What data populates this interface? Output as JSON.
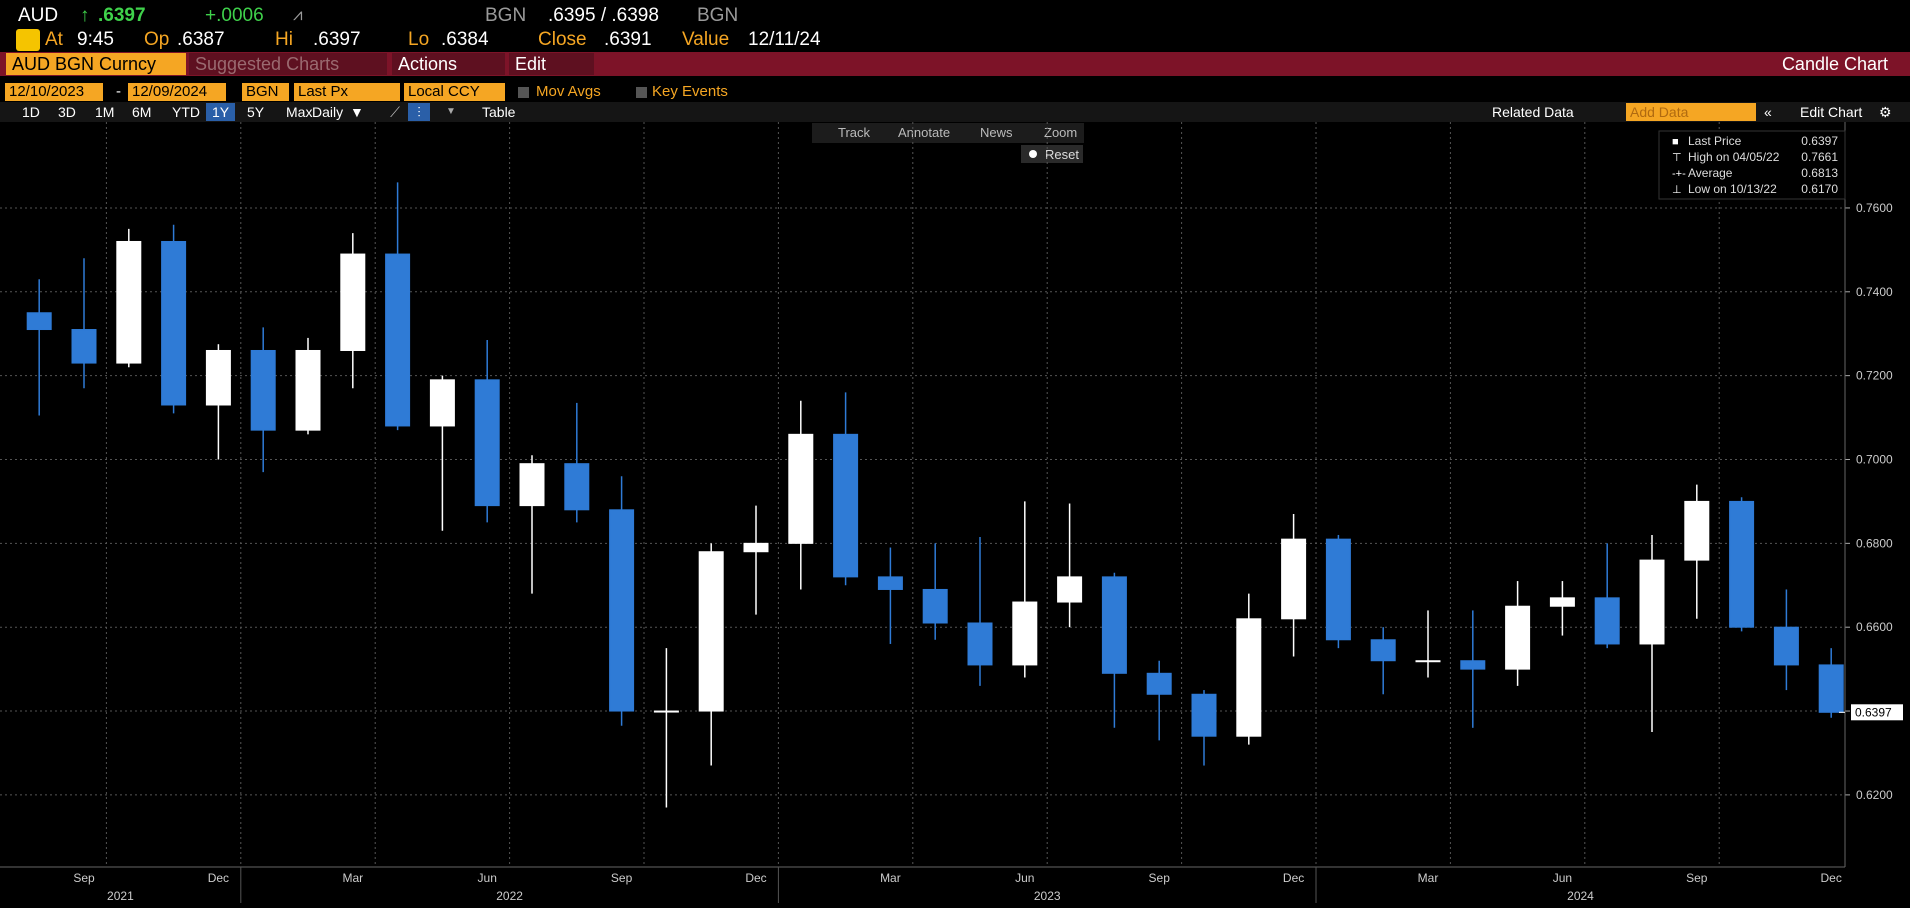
{
  "header": {
    "ticker": "AUD",
    "last": ".6397",
    "change": "+.0006",
    "source": "BGN",
    "bid_ask": ".6395 / .6398",
    "source2": "BGN",
    "time_label": "At",
    "time": "9:45",
    "open_label": "Op",
    "open": ".6387",
    "high_label": "Hi",
    "high": ".6397",
    "low_label": "Lo",
    "low": ".6384",
    "close_label": "Close",
    "close": ".6391",
    "value_label": "Value",
    "value_date": "12/11/24"
  },
  "toolbar": {
    "security": "AUD BGN Curncy",
    "suggested": "Suggested Charts",
    "actions": "Actions",
    "edit": "Edit",
    "chart_name": "Candle Chart"
  },
  "controls": {
    "start_date": "12/10/2023",
    "end_date": "12/09/2024",
    "source": "BGN",
    "field": "Last Px",
    "currency": "Local CCY",
    "mov_avgs": "Mov Avgs",
    "key_events": "Key Events",
    "periods": [
      "1D",
      "3D",
      "1M",
      "6M",
      "YTD",
      "1Y",
      "5Y",
      "Max"
    ],
    "frequency": "Daily",
    "table": "Table",
    "related": "Related Data",
    "add_data": "Add Data",
    "edit_chart": "Edit Chart",
    "tools": [
      "Track",
      "Annotate",
      "News",
      "Zoom"
    ],
    "reset": "Reset"
  },
  "legend": [
    {
      "label": "Last Price",
      "value": "0.6397"
    },
    {
      "label": "High on 04/05/22",
      "value": "0.7661"
    },
    {
      "label": "Average",
      "value": "0.6813"
    },
    {
      "label": "Low on 10/13/22",
      "value": "0.6170"
    }
  ],
  "chart_data": {
    "type": "candlestick",
    "categories": [
      "2021-08",
      "2021-09",
      "2021-10",
      "2021-11",
      "2021-12",
      "2022-01",
      "2022-02",
      "2022-03",
      "2022-04",
      "2022-05",
      "2022-06",
      "2022-07",
      "2022-08",
      "2022-09",
      "2022-10",
      "2022-11",
      "2022-12",
      "2023-01",
      "2023-02",
      "2023-03",
      "2023-04",
      "2023-05",
      "2023-06",
      "2023-07",
      "2023-08",
      "2023-09",
      "2023-10",
      "2023-11",
      "2023-12",
      "2024-01",
      "2024-02",
      "2024-03",
      "2024-04",
      "2024-05",
      "2024-06",
      "2024-07",
      "2024-08",
      "2024-09",
      "2024-10",
      "2024-11",
      "2024-12"
    ],
    "open": [
      0.735,
      0.731,
      0.723,
      0.752,
      0.713,
      0.726,
      0.707,
      0.726,
      0.749,
      0.708,
      0.719,
      0.689,
      0.699,
      0.688,
      0.64,
      0.64,
      0.678,
      0.68,
      0.706,
      0.672,
      0.669,
      0.661,
      0.651,
      0.666,
      0.672,
      0.649,
      0.644,
      0.634,
      0.662,
      0.681,
      0.657,
      0.652,
      0.652,
      0.65,
      0.665,
      0.667,
      0.656,
      0.676,
      0.69,
      0.66,
      0.651
    ],
    "high": [
      0.743,
      0.748,
      0.755,
      0.756,
      0.7275,
      0.7315,
      0.729,
      0.754,
      0.7661,
      0.72,
      0.7285,
      0.701,
      0.7135,
      0.696,
      0.655,
      0.68,
      0.689,
      0.714,
      0.716,
      0.679,
      0.68,
      0.6815,
      0.69,
      0.6895,
      0.673,
      0.652,
      0.645,
      0.668,
      0.687,
      0.682,
      0.66,
      0.664,
      0.664,
      0.671,
      0.671,
      0.68,
      0.682,
      0.694,
      0.691,
      0.669,
      0.655
    ],
    "low": [
      0.7105,
      0.717,
      0.722,
      0.711,
      0.7,
      0.697,
      0.706,
      0.717,
      0.707,
      0.683,
      0.685,
      0.668,
      0.685,
      0.6365,
      0.617,
      0.627,
      0.663,
      0.669,
      0.67,
      0.656,
      0.657,
      0.646,
      0.648,
      0.66,
      0.636,
      0.633,
      0.627,
      0.632,
      0.653,
      0.655,
      0.644,
      0.648,
      0.636,
      0.646,
      0.658,
      0.655,
      0.635,
      0.662,
      0.659,
      0.645,
      0.6384
    ],
    "close": [
      0.731,
      0.723,
      0.752,
      0.713,
      0.726,
      0.707,
      0.726,
      0.749,
      0.708,
      0.719,
      0.689,
      0.699,
      0.688,
      0.64,
      0.64,
      0.678,
      0.68,
      0.706,
      0.672,
      0.669,
      0.661,
      0.651,
      0.666,
      0.672,
      0.649,
      0.644,
      0.634,
      0.662,
      0.681,
      0.657,
      0.652,
      0.652,
      0.65,
      0.665,
      0.667,
      0.656,
      0.676,
      0.69,
      0.66,
      0.651,
      0.6397
    ],
    "up_color": "#ffffff",
    "down_color": "#2f7bd6",
    "ylim": [
      0.6028,
      0.7805
    ],
    "yticks": [
      {
        "value": 0.62,
        "label": "0.6200"
      },
      {
        "value": 0.64,
        "label": "0.6400"
      },
      {
        "value": 0.66,
        "label": "0.6600"
      },
      {
        "value": 0.68,
        "label": "0.6800"
      },
      {
        "value": 0.7,
        "label": "0.7000"
      },
      {
        "value": 0.72,
        "label": "0.7200"
      },
      {
        "value": 0.74,
        "label": "0.7400"
      },
      {
        "value": 0.76,
        "label": "0.7600"
      }
    ],
    "xticks": [
      {
        "value": "2021-09",
        "label": "Sep"
      },
      {
        "value": "2021-12",
        "label": "Dec"
      },
      {
        "value": "2022-03",
        "label": "Mar"
      },
      {
        "value": "2022-06",
        "label": "Jun"
      },
      {
        "value": "2022-09",
        "label": "Sep"
      },
      {
        "value": "2022-12",
        "label": "Dec"
      },
      {
        "value": "2023-03",
        "label": "Mar"
      },
      {
        "value": "2023-06",
        "label": "Jun"
      },
      {
        "value": "2023-09",
        "label": "Sep"
      },
      {
        "value": "2023-12",
        "label": "Dec"
      },
      {
        "value": "2024-03",
        "label": "Mar"
      },
      {
        "value": "2024-06",
        "label": "Jun"
      },
      {
        "value": "2024-09",
        "label": "Sep"
      },
      {
        "value": "2024-12",
        "label": "Dec"
      }
    ],
    "years": [
      2021,
      2022,
      2023,
      2024
    ],
    "last_price_tag": {
      "value": 0.6397,
      "label": "0.6397"
    },
    "grid": true
  }
}
